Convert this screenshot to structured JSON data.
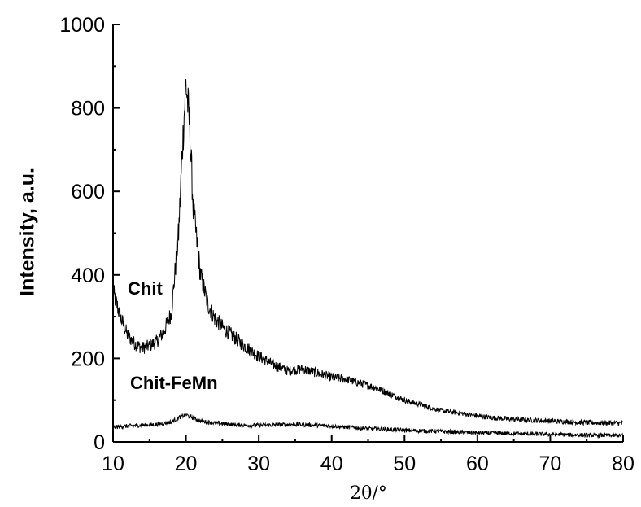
{
  "chart_data": {
    "type": "line",
    "xlabel": "2θ/°",
    "ylabel": "Intensity, a.u.",
    "xlim": [
      10,
      80
    ],
    "ylim": [
      0,
      1000
    ],
    "x_ticks": [
      10,
      20,
      30,
      40,
      50,
      60,
      70,
      80
    ],
    "y_ticks": [
      0,
      200,
      400,
      600,
      800,
      1000
    ],
    "grid": false,
    "legend": "none",
    "annotations": [
      "Chit",
      "Chit-FeMn"
    ],
    "series": [
      {
        "name": "Chit",
        "color": "#000000",
        "x": [
          10,
          11,
          12,
          13,
          14,
          15,
          16,
          17,
          18,
          19,
          19.5,
          20,
          20.5,
          21,
          22,
          23,
          24,
          25,
          26,
          28,
          30,
          32,
          34,
          36,
          38,
          40,
          42,
          44,
          46,
          48,
          50,
          52,
          55,
          58,
          60,
          62,
          65,
          70,
          75,
          80
        ],
        "y": [
          360,
          300,
          255,
          235,
          225,
          230,
          240,
          265,
          310,
          500,
          700,
          860,
          760,
          560,
          400,
          330,
          295,
          275,
          260,
          230,
          205,
          185,
          170,
          175,
          165,
          155,
          150,
          140,
          130,
          115,
          100,
          90,
          75,
          68,
          62,
          58,
          54,
          50,
          46,
          45
        ]
      },
      {
        "name": "Chit-FeMn",
        "color": "#000000",
        "x": [
          10,
          12,
          14,
          16,
          18,
          19,
          20,
          21,
          22,
          24,
          26,
          28,
          30,
          35,
          40,
          45,
          50,
          55,
          60,
          65,
          70,
          75,
          80
        ],
        "y": [
          35,
          38,
          40,
          42,
          48,
          58,
          65,
          57,
          50,
          45,
          42,
          40,
          40,
          42,
          38,
          32,
          28,
          25,
          22,
          20,
          18,
          16,
          15
        ]
      }
    ]
  }
}
